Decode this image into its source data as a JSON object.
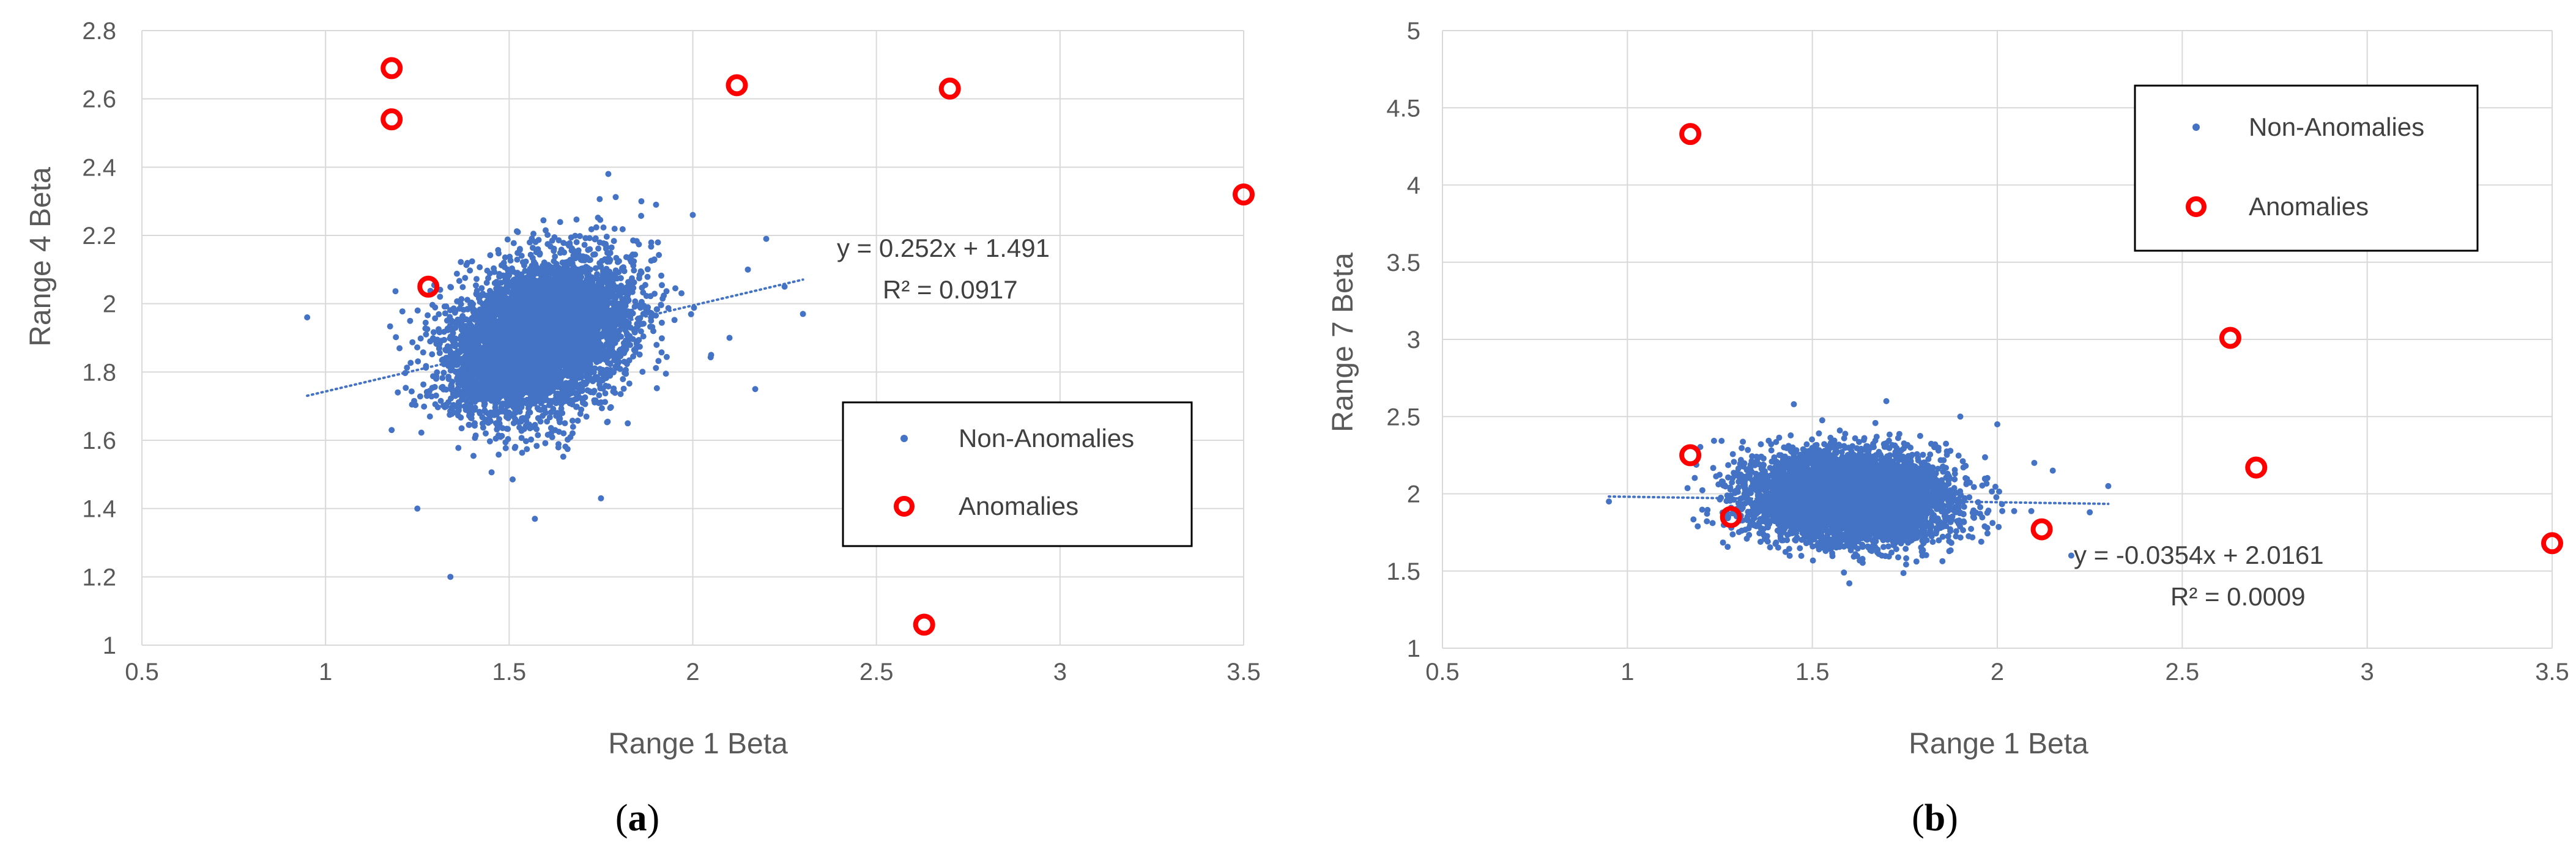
{
  "chart_data": [
    {
      "type": "scatter",
      "panel_label": "a",
      "xlabel": "Range 1 Beta",
      "ylabel": "Range 4 Beta",
      "xlim": [
        0.5,
        3.5
      ],
      "ylim": [
        1,
        2.8
      ],
      "xticks": [
        0.5,
        1,
        1.5,
        2,
        2.5,
        3,
        3.5
      ],
      "xtick_labels": [
        "0.5",
        "1",
        "1.5",
        "2",
        "2.5",
        "3",
        "3.5"
      ],
      "yticks": [
        1,
        1.2,
        1.4,
        1.6,
        1.8,
        2,
        2.2,
        2.4,
        2.6,
        2.8
      ],
      "ytick_labels": [
        "1",
        "1.2",
        "1.4",
        "1.6",
        "1.8",
        "2",
        "2.2",
        "2.4",
        "2.6",
        "2.8"
      ],
      "grid": true,
      "legend_position": "right",
      "series": [
        {
          "name": "Non-Anomalies",
          "marker": "dot",
          "color": "#4472C4",
          "cloud": {
            "x_center": 1.58,
            "y_center": 1.9,
            "x_spread": 0.12,
            "y_spread": 0.11,
            "correlation": 0.3,
            "count": 6000
          },
          "points": [
            {
              "x": 0.95,
              "y": 1.96
            },
            {
              "x": 1.34,
              "y": 1.2
            },
            {
              "x": 1.18,
              "y": 1.63
            },
            {
              "x": 1.25,
              "y": 1.4
            },
            {
              "x": 1.57,
              "y": 1.37
            },
            {
              "x": 1.75,
              "y": 1.43
            },
            {
              "x": 2.17,
              "y": 1.75
            },
            {
              "x": 2.2,
              "y": 2.19
            },
            {
              "x": 2.3,
              "y": 1.97
            },
            {
              "x": 1.77,
              "y": 2.38
            },
            {
              "x": 1.86,
              "y": 2.3
            },
            {
              "x": 1.9,
              "y": 2.29
            },
            {
              "x": 2.0,
              "y": 2.26
            },
            {
              "x": 2.25,
              "y": 2.05
            },
            {
              "x": 2.15,
              "y": 2.1
            },
            {
              "x": 2.05,
              "y": 1.85
            },
            {
              "x": 2.1,
              "y": 1.9
            }
          ]
        },
        {
          "name": "Anomalies",
          "marker": "ring",
          "color": "#FF0000",
          "points": [
            {
              "x": 1.18,
              "y": 2.69
            },
            {
              "x": 1.18,
              "y": 2.54
            },
            {
              "x": 1.28,
              "y": 2.05
            },
            {
              "x": 2.12,
              "y": 2.64
            },
            {
              "x": 2.7,
              "y": 2.63
            },
            {
              "x": 3.5,
              "y": 2.32
            },
            {
              "x": 2.63,
              "y": 1.06
            }
          ]
        }
      ],
      "trendline": {
        "slope": 0.252,
        "intercept": 1.491,
        "x_range": [
          0.95,
          2.3
        ],
        "equation": "y = 0.252x + 1.491",
        "r2": "R² = 0.0917"
      }
    },
    {
      "type": "scatter",
      "panel_label": "b",
      "xlabel": "Range 1 Beta",
      "ylabel": "Range 7 Beta",
      "xlim": [
        0.5,
        3.5
      ],
      "ylim": [
        1,
        5
      ],
      "xticks": [
        0.5,
        1,
        1.5,
        2,
        2.5,
        3,
        3.5
      ],
      "xtick_labels": [
        "0.5",
        "1",
        "1.5",
        "2",
        "2.5",
        "3",
        "3.5"
      ],
      "yticks": [
        1,
        1.5,
        2,
        2.5,
        3,
        3.5,
        4,
        4.5,
        5
      ],
      "ytick_labels": [
        "1",
        "1.5",
        "2",
        "2.5",
        "3",
        "3.5",
        "4",
        "4.5",
        "5"
      ],
      "grid": true,
      "legend_position": "top-right",
      "series": [
        {
          "name": "Non-Anomalies",
          "marker": "dot",
          "color": "#4472C4",
          "cloud": {
            "x_center": 1.6,
            "y_center": 1.98,
            "x_spread": 0.13,
            "y_spread": 0.14,
            "correlation": -0.05,
            "count": 6000
          },
          "points": [
            {
              "x": 0.95,
              "y": 1.95
            },
            {
              "x": 2.3,
              "y": 2.05
            },
            {
              "x": 2.25,
              "y": 1.88
            },
            {
              "x": 2.2,
              "y": 1.6
            },
            {
              "x": 1.6,
              "y": 1.42
            },
            {
              "x": 1.7,
              "y": 2.6
            },
            {
              "x": 2.0,
              "y": 2.45
            },
            {
              "x": 2.1,
              "y": 2.2
            },
            {
              "x": 2.15,
              "y": 2.15
            },
            {
              "x": 1.45,
              "y": 2.58
            },
            {
              "x": 1.9,
              "y": 2.5
            }
          ]
        },
        {
          "name": "Anomalies",
          "marker": "ring",
          "color": "#FF0000",
          "points": [
            {
              "x": 1.17,
              "y": 4.33
            },
            {
              "x": 1.17,
              "y": 2.25
            },
            {
              "x": 1.28,
              "y": 1.85
            },
            {
              "x": 2.12,
              "y": 1.77
            },
            {
              "x": 2.63,
              "y": 3.01
            },
            {
              "x": 2.7,
              "y": 2.17
            },
            {
              "x": 3.5,
              "y": 1.68
            }
          ]
        }
      ],
      "trendline": {
        "slope": -0.0354,
        "intercept": 2.0161,
        "x_range": [
          0.95,
          2.3
        ],
        "equation": "y = -0.0354x + 2.0161",
        "r2": "R² = 0.0009"
      }
    }
  ]
}
